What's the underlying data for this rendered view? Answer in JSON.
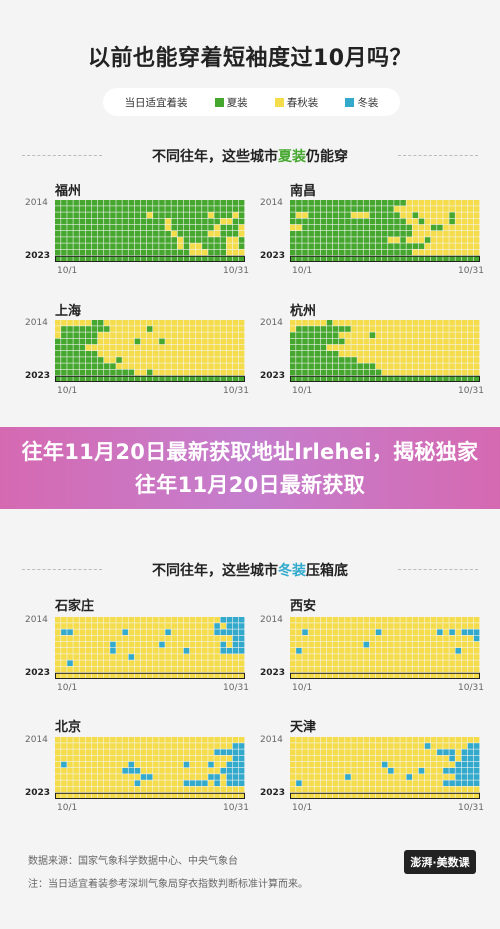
{
  "title": "以前也能穿着短袖度过10月吗？",
  "legend": [
    {
      "label": "当日适宜着装",
      "color": ""
    },
    {
      "label": "夏装",
      "color": "#46a72f"
    },
    {
      "label": "春秋装",
      "color": "#f5dc4a"
    },
    {
      "label": "冬装",
      "color": "#33aacc"
    }
  ],
  "sections": [
    {
      "prefix": "不同往年，这些城市",
      "highlight": "夏装",
      "suffix": "仍能穿",
      "color": "#46a72f"
    },
    {
      "prefix": "不同往年，这些城市",
      "highlight": "冬装",
      "suffix": "压箱底",
      "color": "#33aacc"
    }
  ],
  "axis": {
    "year_top": "2014",
    "year_bottom": "2023",
    "x_start": "10/1",
    "x_end": "10/31"
  },
  "banner": "往年11月20日最新获取地址lrlehei，揭秘独家往年11月20日最新获取",
  "footer": {
    "source": "数据来源：国家气象科学数据中心、中央气象台",
    "note": "注：当日适宜着装参考深圳气象局穿衣指数判断标准计算而来。",
    "logo": "澎湃·美数课"
  },
  "colors": {
    "summer": "#46a72f",
    "springautumn": "#f5dc4a",
    "winter": "#33aacc",
    "empty": "#dcdcdc"
  },
  "chart_data": [
    {
      "type": "heatmap",
      "title": "福州",
      "x": "10/1–10/31",
      "y": "2014–2023",
      "values_encoding": "S=夏装, A=春秋装, W=冬装",
      "rows": [
        "SSSSSSSSSSSSSSSSSSSSSSSSSSSSSSS",
        "SSSSSSSSSSSSSSSSSSSSSSSSSSSSSSS",
        "SSSSSSSSSSSSSSSASSSSSSSSSASSSAS",
        "SSSSSSSSSSSSSSSSSSASSSSSSSSAASS",
        "SSSSSSSSSSSSSSSSSSASSSSSSSASSSA",
        "SSSSSSSSSSSSSSSSSSSASSSSSAASSSA",
        "SSSSSSSSSSSSSSSSSSSSASSSSSSSAAS",
        "SSSSSSSSSSSSSSSSSSSSASAASSSSAAS",
        "SSSSSSSSSSSSSSSSSSSSSSAAASSSAAA",
        "SSSSSSSSSSSSSSSSSSSSSSSSSSSSSSS"
      ]
    },
    {
      "type": "heatmap",
      "title": "南昌",
      "x": "10/1–10/31",
      "y": "2014–2023",
      "rows": [
        "SSSSSSSSSSSSSSSSSSSAAAAAAAAAAAA",
        "SSSSSSSSSSSSSSSSSAAAAAAAAAAAAAA",
        "SAASSSSSSSAAASSSSSAASAAAAASAAAA",
        "SSSSSSSSSSSSSSSSSSSAASAAAASAAAA",
        "AASSSSSSSSSSSSSSSSSSAAASSAAAAAA",
        "SSSSSSSSSSSSSSSSSSSSAAAAAAAAAAA",
        "SSSSSSSSSSSSSSSSAASAAASAAAAAAAA",
        "SSSSSSSSSSSSSSSSSSSSSSAAAAAAAAA",
        "SSSSSSSSSSSSSSSSSSSSAAAAAAAAAAA",
        "SSSSSSSSSSSSSSSSSSSSSSSSSSSSSSS"
      ]
    },
    {
      "type": "heatmap",
      "title": "上海",
      "x": "10/1–10/31",
      "y": "2014–2023",
      "rows": [
        "AAAAAASSAAAAAAAAAAAAAAAAAAAAAAA",
        "ASSSSSSSSAAAAAASAAAAAAAAAAAAAAA",
        "ASSSSSSAAAAAAAAAAAAAAAAAAAAAAAA",
        "SSSSSSSAAAAAASAAASAAAAAAAAAAAAA",
        "SSSSSAAAAAAAAAAAAAAAAAAAAAAAAAA",
        "SSSSSSSAAAAAAAAAAAAAAAAAAAAAAAA",
        "SSSSSSSSAASAAAAAAAAAAAAAAAAAAAA",
        "SSSSSSSSSSAAAAAAAAAAAAAAAAAAAAA",
        "SSSSSSSSSSSSSAASAAAAAAAAAAAAAAA",
        "SSSSSSSSSSSSSSSSSSSSSSSSSSSSSSS"
      ]
    },
    {
      "type": "heatmap",
      "title": "杭州",
      "x": "10/1–10/31",
      "y": "2014–2023",
      "rows": [
        "AAAAAASAAAAAAAAAAAAAAAAAAAAAAAA",
        "ASSSSSSSSSAAAAAAAAAAAAAAAAAAAAA",
        "SSSSSSSSAAAAASAAAAAAAAAAAAAAAAA",
        "SSSSSSSSSAAAAAAAAAAAAAAAAAAAAAA",
        "SSSSSSAAAAAAAAAAAAAAAAAAAAAAAAA",
        "SSSSSSSSAAAAAAAAAAAAAAAAAAAAAAA",
        "SSSSSSSSSSSAAAAAAAAAAAAAAAAAAAA",
        "SSSSSSSSSSSSSSAAAAAAAAAAAAAAAAA",
        "SSSSSSSSSSSSSSSAAAAAAAAAAAAAAAA",
        "SSSSSSSSSSSSSSSSSSSSSSSSSSSSSSS"
      ]
    },
    {
      "type": "heatmap",
      "title": "石家庄",
      "x": "10/1–10/31",
      "y": "2014–2023",
      "rows": [
        "AAAAAAAAAAAAAAAAAAAAAAAAAAAWWWW",
        "AAAAAAAAAAAAAAAAAAAAAAAAAAWAWWW",
        "AWWAAAAAAAAWAAAAAAWAAAAAAAWWWWW",
        "AAAAAAAAAAAAAAAAAAAAAAAAAAAAAWW",
        "AAAAAAAAAWAAAAAAAWAAAAAAAAAWAWW",
        "AAAAAAAAAWAAAAAAAAAAAWAAAAAWWWW",
        "AAAAAAAAAAAAWAAAAAAAAAAAAAAAAAA",
        "AAWAAAAAAAAAAAAAAAAAAAAAAAAAAAA",
        "AAAAAAAAAAAAAAAAAAAAAAAAAAAAAAA",
        "AAAAAAAAAAAAAAAAAAAAAAAAAAAAAAA"
      ]
    },
    {
      "type": "heatmap",
      "title": "西安",
      "x": "10/1–10/31",
      "y": "2014–2023",
      "rows": [
        "AAAAAAAAAAAAAAAAAAAAAAAAAAAAAAA",
        "AAAAAAAAAAAAAAAAAAAAAAAAAAAAAAA",
        "AAWAAAAAAAAAAAWAAAAAAAAAWAWAWWW",
        "AAAAAAAAAAAAAAAAAAAAAAAAAAAAAAW",
        "AAAAAAAAAAAAWAAAAAAAAAAAAAAAAAA",
        "AWAAAAAAAAAAAAAAAAAAAAAAAAAWAAA",
        "AAAAAAAAAAAAAAAAAAAAAAAAAAAAAAA",
        "AAAAAAAAAAAAAAAAAAAAAAAAAAAAAAA",
        "AAAAAAAAAAAAAAAAAAAAAAAAAAAAAAA",
        "AAAAAAAAAAAAAAAAAAAAAAAAAAAAAAA"
      ]
    },
    {
      "type": "heatmap",
      "title": "北京",
      "x": "10/1–10/31",
      "y": "2014–2023",
      "rows": [
        "AAAAAAAAAAAAAAAAAAAAAAAAAAAAAAA",
        "AAAAAAAAAAAAAAAAAAAAAAAAAAAAAWW",
        "AAAAAAAAAAAAAAAAAAAAAAAAAAWWWWW",
        "AAAAAAAAAAAAAAAAAAAAAAAAAAAAAWW",
        "AWAAAAAAAAAAWAAAAAAAAWAAAWAAWWW",
        "AAAAAAAAAAAWWWAAAAAAAAAAAAAWWWW",
        "AAAAAAAAAAAAAAWWAAAAAAAAAWWAWWW",
        "AAAAAAAAAAAAAWAAAAAAAWWWWAWAWWW",
        "AAAAAAAAAAAAAAAAAAAAAAAAAAAAAAA",
        "AAAAAAAAAAAAAAAAAAAAAAAAAAAAAAA"
      ]
    },
    {
      "type": "heatmap",
      "title": "天津",
      "x": "10/1–10/31",
      "y": "2014–2023",
      "rows": [
        "AAAAAAAAAAAAAAAAAAAAAAAAAAAAAAA",
        "AAAAAAAAAAAAAAAAAAAAAAWAAAAAAWW",
        "AAAAAAAAAAAAAAAAAAAAAAAAWWWAWWW",
        "AAAAAAAAAAAAAAAAAAAAAAAAAAWAWWW",
        "AAAAAAAAAAAAAAAWAAAAAAAAAAAWWWW",
        "AAAAAAAAAAAAAAAAWAAAAWAAAWWWWWW",
        "AAAAAAAAAWAAAAAAAAAWAAAAAAAWWWW",
        "AWAAAAAAAAAAAAAAAAAAAAAAAWWWWWW",
        "AAAAAAAAAAAAAAAAAAAAAAAAAAAAAAA",
        "AAAAAAAAAAAAAAAAAAAAAAAAAAAAAAA"
      ]
    }
  ]
}
